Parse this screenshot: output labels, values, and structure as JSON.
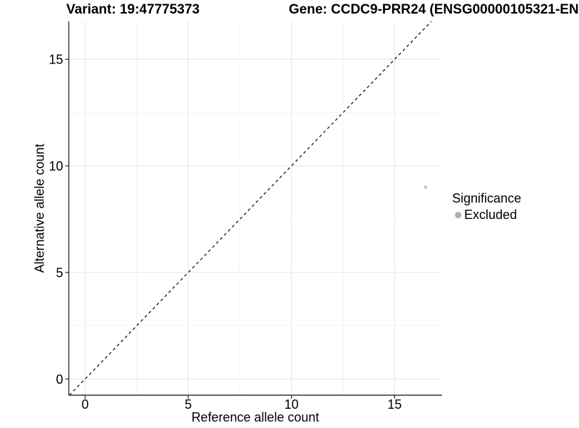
{
  "chart_data": {
    "type": "scatter",
    "titles": [
      "Variant: 19:47775373",
      "Gene: CCDC9-PRR24 (ENSG00000105321-EN"
    ],
    "xlabel": "Reference allele count",
    "ylabel": "Alternative allele count",
    "x_ticks": [
      0,
      5,
      10,
      15
    ],
    "y_ticks": [
      0,
      5,
      10,
      15
    ],
    "x_minor_ticks": [
      2.5,
      7.5,
      12.5
    ],
    "y_minor_ticks": [
      2.5,
      7.5,
      12.5
    ],
    "xlim": [
      -0.79,
      17.3
    ],
    "ylim": [
      -0.76,
      16.78
    ],
    "grid": true,
    "points": [
      {
        "x": 16.5,
        "y": 9,
        "series": "Excluded"
      }
    ],
    "identity_line": {
      "shown": true,
      "style": "dashed",
      "color": "#000000",
      "slope": 1,
      "intercept": 0
    },
    "legend": {
      "title": "Significance",
      "position": "right",
      "entries": [
        {
          "label": "Excluded",
          "color": "#b0b0b0"
        }
      ]
    },
    "colors": {
      "point": "#c0c0c0",
      "grid_major": "#e7e7e7",
      "grid_minor": "#f2f2f2",
      "axis_line": "#333333",
      "tick_mark": "#333333",
      "text": "#000000",
      "background": "#ffffff"
    }
  }
}
